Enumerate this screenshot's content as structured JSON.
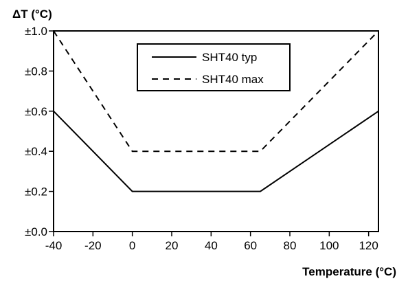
{
  "chart_data": {
    "type": "line",
    "ylabel": "ΔT (°C)",
    "xlabel": "Temperature (°C)",
    "xlim": [
      -40,
      125
    ],
    "ylim": [
      0,
      1.0
    ],
    "x_ticks": [
      -40,
      -20,
      0,
      20,
      40,
      60,
      80,
      100,
      120
    ],
    "x_tick_labels": [
      "-40",
      "-20",
      "0",
      "20",
      "40",
      "60",
      "80",
      "100",
      "120"
    ],
    "y_ticks": [
      0,
      0.2,
      0.4,
      0.6,
      0.8,
      1.0
    ],
    "y_tick_labels": [
      "±0.0",
      "±0.2",
      "±0.4",
      "±0.6",
      "±0.8",
      "±1.0"
    ],
    "grid": false,
    "legend_position": "top-center",
    "series": [
      {
        "name": "SHT40 typ",
        "line_style": "solid",
        "color": "#000000",
        "x": [
          -40,
          0,
          65,
          125
        ],
        "y": [
          0.6,
          0.2,
          0.2,
          0.6
        ]
      },
      {
        "name": "SHT40 max",
        "line_style": "dashed",
        "color": "#000000",
        "x": [
          -40,
          0,
          65,
          125
        ],
        "y": [
          1.0,
          0.4,
          0.4,
          1.0
        ]
      }
    ]
  }
}
